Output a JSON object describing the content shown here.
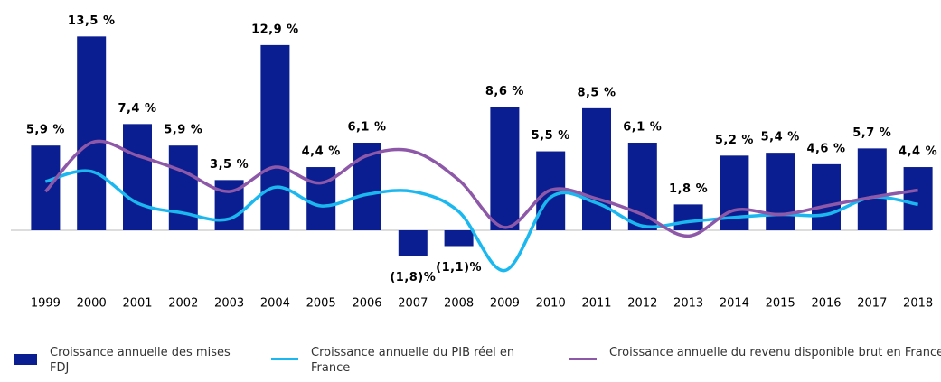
{
  "chart_data": {
    "type": "bar",
    "categories": [
      "1999",
      "2000",
      "2001",
      "2002",
      "2003",
      "2004",
      "2005",
      "2006",
      "2007",
      "2008",
      "2009",
      "2010",
      "2011",
      "2012",
      "2013",
      "2014",
      "2015",
      "2016",
      "2017",
      "2018"
    ],
    "series": [
      {
        "name": "Croissance annuelle des mises FDJ",
        "type": "bar",
        "color": "#0a1e91",
        "values": [
          5.9,
          13.5,
          7.4,
          5.9,
          3.5,
          12.9,
          4.4,
          6.1,
          -1.8,
          -1.1,
          8.6,
          5.5,
          8.5,
          6.1,
          1.8,
          5.2,
          5.4,
          4.6,
          5.7,
          4.4
        ],
        "value_labels": [
          "5,9 %",
          "13,5 %",
          "7,4 %",
          "5,9 %",
          "3,5 %",
          "12,9 %",
          "4,4 %",
          "6,1 %",
          "(1,8)%",
          "(1,1)%",
          "8,6 %",
          "5,5 %",
          "8,5 %",
          "6,1 %",
          "1,8 %",
          "5,2 %",
          "5,4 %",
          "4,6 %",
          "5,7 %",
          "4,4 %"
        ]
      },
      {
        "name": "Croissance annuelle du PIB réel en France",
        "type": "line",
        "color": "#1bb8f0",
        "values": [
          3.4,
          4.1,
          1.9,
          1.2,
          0.8,
          3.0,
          1.7,
          2.5,
          2.7,
          1.3,
          -2.8,
          2.3,
          1.9,
          0.3,
          0.6,
          0.9,
          1.1,
          1.1,
          2.3,
          1.8
        ]
      },
      {
        "name": "Croissance annuelle du revenu disponible brut en France",
        "type": "line",
        "color": "#8e58a8",
        "values": [
          2.7,
          6.1,
          5.2,
          4.1,
          2.7,
          4.4,
          3.3,
          5.2,
          5.5,
          3.5,
          0.2,
          2.8,
          2.2,
          1.1,
          -0.4,
          1.4,
          1.1,
          1.7,
          2.3,
          2.8
        ]
      }
    ],
    "ylim": [
      -4,
      14
    ],
    "legend": "bottom"
  }
}
